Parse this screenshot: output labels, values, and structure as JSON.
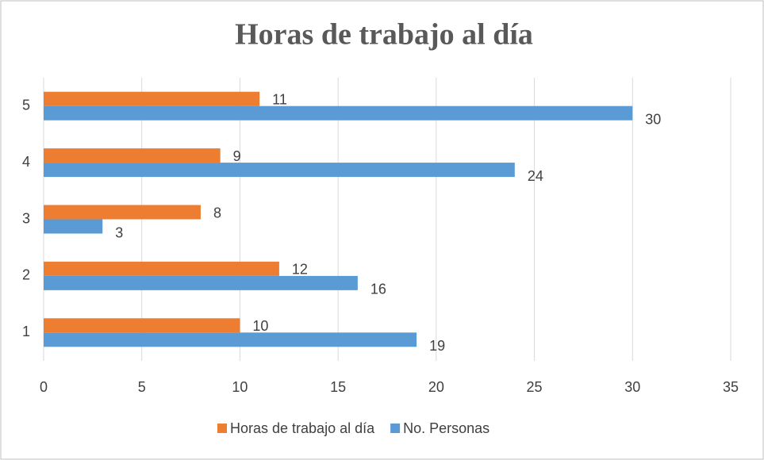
{
  "chart_data": {
    "type": "bar",
    "orientation": "horizontal",
    "title": "Horas de trabajo al día",
    "categories": [
      "1",
      "2",
      "3",
      "4",
      "5"
    ],
    "series": [
      {
        "name": "Horas de trabajo al día",
        "color": "#ed7d31",
        "values": [
          10,
          12,
          8,
          9,
          11
        ]
      },
      {
        "name": "No. Personas",
        "color": "#5b9bd5",
        "values": [
          19,
          16,
          3,
          24,
          30
        ]
      }
    ],
    "xlim": [
      0,
      35
    ],
    "xticks": [
      0,
      5,
      10,
      15,
      20,
      25,
      30,
      35
    ],
    "grid": true,
    "legend": "bottom"
  }
}
